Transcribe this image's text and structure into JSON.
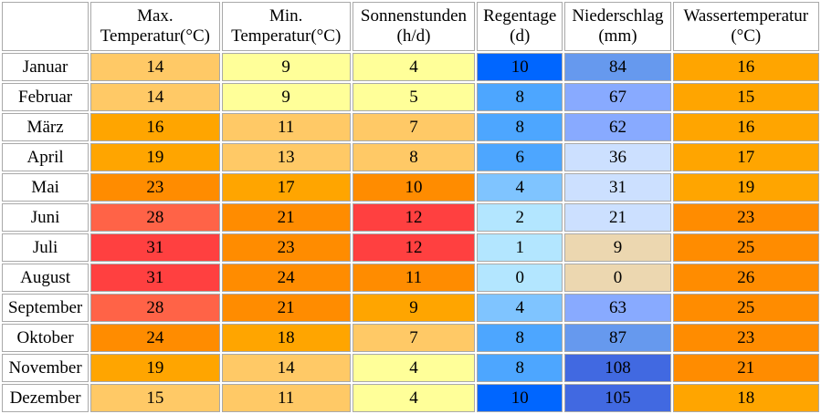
{
  "headers": [
    {
      "line1": "",
      "line2": ""
    },
    {
      "line1": "Max.",
      "line2": "Temperatur(°C)"
    },
    {
      "line1": "Min.",
      "line2": "Temperatur(°C)"
    },
    {
      "line1": "Sonnenstunden",
      "line2": "(h/d)"
    },
    {
      "line1": "Regentage",
      "line2": "(d)"
    },
    {
      "line1": "Niederschlag",
      "line2": "(mm)"
    },
    {
      "line1": "Wassertemperatur",
      "line2": "(°C)"
    }
  ],
  "rows": [
    {
      "month": "Januar",
      "cells": [
        {
          "v": "14",
          "c": "#ffc966"
        },
        {
          "v": "9",
          "c": "#ffff99"
        },
        {
          "v": "4",
          "c": "#ffff99"
        },
        {
          "v": "10",
          "c": "#0066ff"
        },
        {
          "v": "84",
          "c": "#6699ee"
        },
        {
          "v": "16",
          "c": "#ffa500"
        }
      ]
    },
    {
      "month": "Februar",
      "cells": [
        {
          "v": "14",
          "c": "#ffc966"
        },
        {
          "v": "9",
          "c": "#ffff99"
        },
        {
          "v": "5",
          "c": "#ffff99"
        },
        {
          "v": "8",
          "c": "#4da6ff"
        },
        {
          "v": "67",
          "c": "#88aaff"
        },
        {
          "v": "15",
          "c": "#ffa500"
        }
      ]
    },
    {
      "month": "März",
      "cells": [
        {
          "v": "16",
          "c": "#ffa500"
        },
        {
          "v": "11",
          "c": "#ffc966"
        },
        {
          "v": "7",
          "c": "#ffc966"
        },
        {
          "v": "8",
          "c": "#4da6ff"
        },
        {
          "v": "62",
          "c": "#88aaff"
        },
        {
          "v": "16",
          "c": "#ffa500"
        }
      ]
    },
    {
      "month": "April",
      "cells": [
        {
          "v": "19",
          "c": "#ffa500"
        },
        {
          "v": "13",
          "c": "#ffc966"
        },
        {
          "v": "8",
          "c": "#ffc966"
        },
        {
          "v": "6",
          "c": "#4da6ff"
        },
        {
          "v": "36",
          "c": "#cce0ff"
        },
        {
          "v": "17",
          "c": "#ffa500"
        }
      ]
    },
    {
      "month": "Mai",
      "cells": [
        {
          "v": "23",
          "c": "#ff8c00"
        },
        {
          "v": "17",
          "c": "#ffa500"
        },
        {
          "v": "10",
          "c": "#ff8c00"
        },
        {
          "v": "4",
          "c": "#7fc4ff"
        },
        {
          "v": "31",
          "c": "#cce0ff"
        },
        {
          "v": "19",
          "c": "#ffa500"
        }
      ]
    },
    {
      "month": "Juni",
      "cells": [
        {
          "v": "28",
          "c": "#ff6347"
        },
        {
          "v": "21",
          "c": "#ff8c00"
        },
        {
          "v": "12",
          "c": "#ff4040"
        },
        {
          "v": "2",
          "c": "#b3e6ff"
        },
        {
          "v": "21",
          "c": "#cce0ff"
        },
        {
          "v": "23",
          "c": "#ff8c00"
        }
      ]
    },
    {
      "month": "Juli",
      "cells": [
        {
          "v": "31",
          "c": "#ff4040"
        },
        {
          "v": "23",
          "c": "#ff8c00"
        },
        {
          "v": "12",
          "c": "#ff4040"
        },
        {
          "v": "1",
          "c": "#b3e6ff"
        },
        {
          "v": "9",
          "c": "#ecd7b0"
        },
        {
          "v": "25",
          "c": "#ff8c00"
        }
      ]
    },
    {
      "month": "August",
      "cells": [
        {
          "v": "31",
          "c": "#ff4040"
        },
        {
          "v": "24",
          "c": "#ff8c00"
        },
        {
          "v": "11",
          "c": "#ff8c00"
        },
        {
          "v": "0",
          "c": "#b3e6ff"
        },
        {
          "v": "0",
          "c": "#ecd7b0"
        },
        {
          "v": "26",
          "c": "#ff8c00"
        }
      ]
    },
    {
      "month": "September",
      "cells": [
        {
          "v": "28",
          "c": "#ff6347"
        },
        {
          "v": "21",
          "c": "#ff8c00"
        },
        {
          "v": "9",
          "c": "#ffa500"
        },
        {
          "v": "4",
          "c": "#7fc4ff"
        },
        {
          "v": "63",
          "c": "#88aaff"
        },
        {
          "v": "25",
          "c": "#ff8c00"
        }
      ]
    },
    {
      "month": "Oktober",
      "cells": [
        {
          "v": "24",
          "c": "#ff8c00"
        },
        {
          "v": "18",
          "c": "#ffa500"
        },
        {
          "v": "7",
          "c": "#ffc966"
        },
        {
          "v": "8",
          "c": "#4da6ff"
        },
        {
          "v": "87",
          "c": "#6699ee"
        },
        {
          "v": "23",
          "c": "#ff8c00"
        }
      ]
    },
    {
      "month": "November",
      "cells": [
        {
          "v": "19",
          "c": "#ffa500"
        },
        {
          "v": "14",
          "c": "#ffc966"
        },
        {
          "v": "4",
          "c": "#ffff99"
        },
        {
          "v": "8",
          "c": "#4da6ff"
        },
        {
          "v": "108",
          "c": "#4169e1"
        },
        {
          "v": "21",
          "c": "#ff8c00"
        }
      ]
    },
    {
      "month": "Dezember",
      "cells": [
        {
          "v": "15",
          "c": "#ffc966"
        },
        {
          "v": "11",
          "c": "#ffc966"
        },
        {
          "v": "4",
          "c": "#ffff99"
        },
        {
          "v": "10",
          "c": "#0066ff"
        },
        {
          "v": "105",
          "c": "#4169e1"
        },
        {
          "v": "18",
          "c": "#ffa500"
        }
      ]
    }
  ]
}
